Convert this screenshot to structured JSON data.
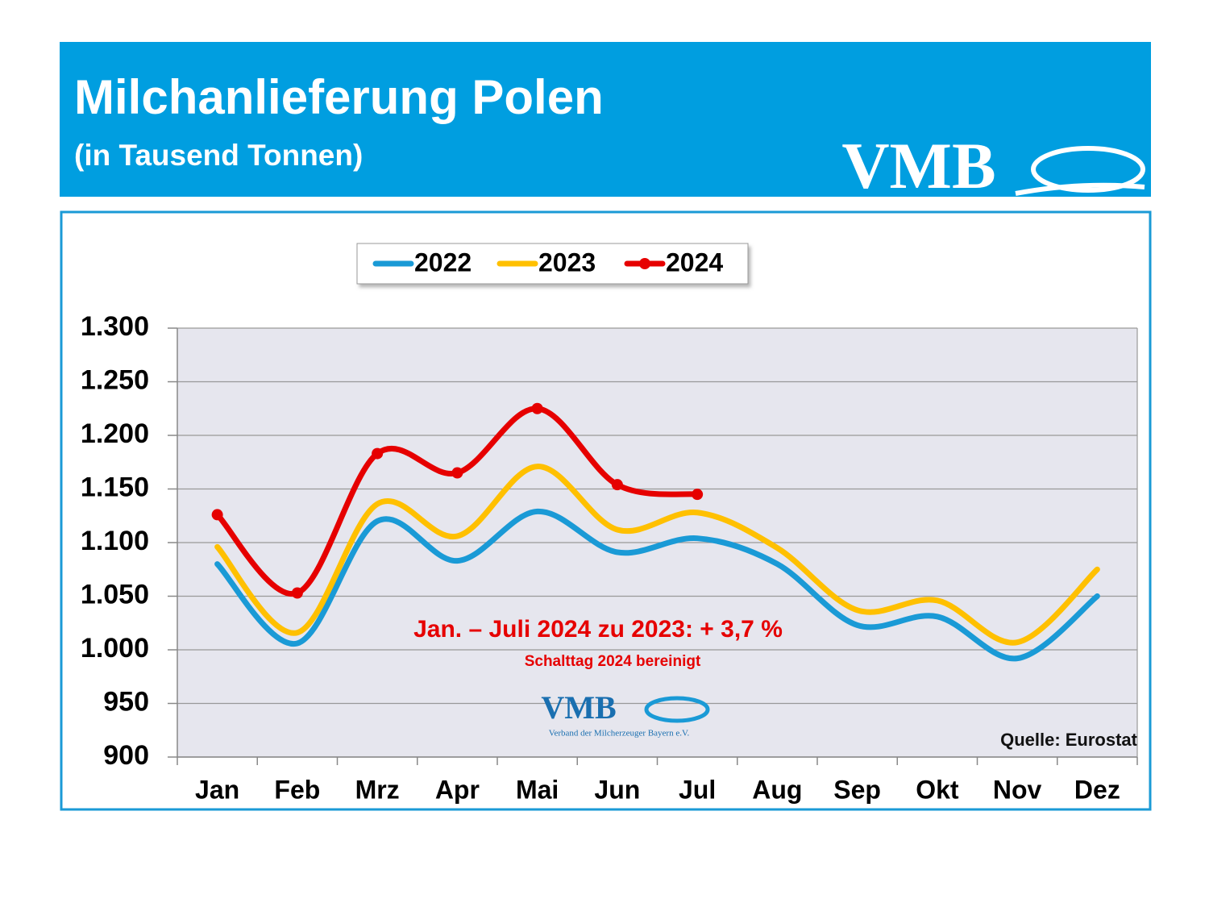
{
  "chart_data": {
    "type": "line",
    "title": "Milchanlieferung Polen",
    "subtitle": "(in Tausend Tonnen)",
    "logo": "VMB",
    "logo_caption": "Verband der Milcherzeuger Bayern e.V.",
    "annotation": "Jan. – Juli 2024 zu 2023: + 3,7 %",
    "annotation_note": "Schalttag 2024 bereinigt",
    "source": "Quelle: Eurostat",
    "categories": [
      "Jan",
      "Feb",
      "Mrz",
      "Apr",
      "Mai",
      "Jun",
      "Jul",
      "Aug",
      "Sep",
      "Okt",
      "Nov",
      "Dez"
    ],
    "series": [
      {
        "name": "2022",
        "color": "#1a9ad6",
        "markers": false,
        "values": [
          1080,
          1006,
          1120,
          1083,
          1129,
          1091,
          1104,
          1080,
          1023,
          1031,
          992,
          1050
        ]
      },
      {
        "name": "2023",
        "color": "#ffc000",
        "markers": false,
        "values": [
          1096,
          1016,
          1136,
          1106,
          1171,
          1112,
          1128,
          1095,
          1037,
          1046,
          1007,
          1075
        ]
      },
      {
        "name": "2024",
        "color": "#e60000",
        "markers": true,
        "values": [
          1126,
          1053,
          1183,
          1165,
          1225,
          1154,
          1145,
          null,
          null,
          null,
          null,
          null
        ]
      }
    ],
    "ylim": [
      900,
      1300
    ],
    "yticks": [
      {
        "value": 900,
        "label": "900"
      },
      {
        "value": 950,
        "label": "950"
      },
      {
        "value": 1000,
        "label": "1.000"
      },
      {
        "value": 1050,
        "label": "1.050"
      },
      {
        "value": 1100,
        "label": "1.100"
      },
      {
        "value": 1150,
        "label": "1.150"
      },
      {
        "value": 1200,
        "label": "1.200"
      },
      {
        "value": 1250,
        "label": "1.250"
      },
      {
        "value": 1300,
        "label": "1.300"
      }
    ],
    "grid": true,
    "legend": "top"
  }
}
